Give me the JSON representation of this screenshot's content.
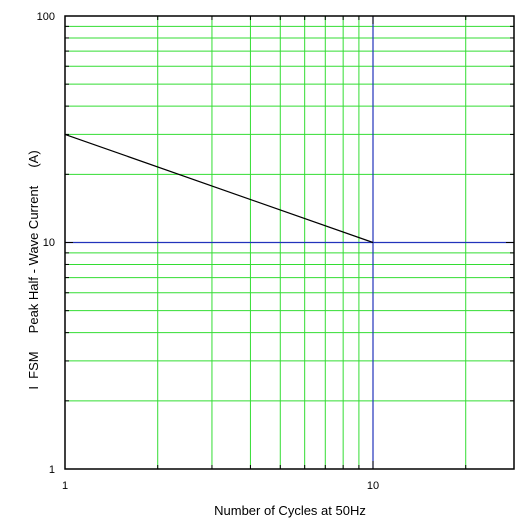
{
  "chart_data": {
    "type": "line",
    "x_scale": "log",
    "y_scale": "log",
    "xlim": [
      1,
      30
    ],
    "ylim": [
      1,
      100
    ],
    "x_tick_labels": [
      "1",
      "10"
    ],
    "x_tick_values": [
      1,
      10
    ],
    "y_tick_labels": [
      "1",
      "10",
      "100"
    ],
    "y_tick_values": [
      1,
      10,
      100
    ],
    "xlabel": "Number of Cycles at 50Hz",
    "ylabel": "I  FSM     Peak Half - Wave Current     (A)",
    "grid": true,
    "series": [
      {
        "x": [
          1,
          10
        ],
        "y": [
          30,
          10
        ]
      }
    ],
    "highlight_lines": {
      "x": 10,
      "y": 10
    },
    "colors": {
      "grid": "#33dd33",
      "series": "#000000",
      "highlight": "#2233bb",
      "frame": "#000000"
    }
  }
}
